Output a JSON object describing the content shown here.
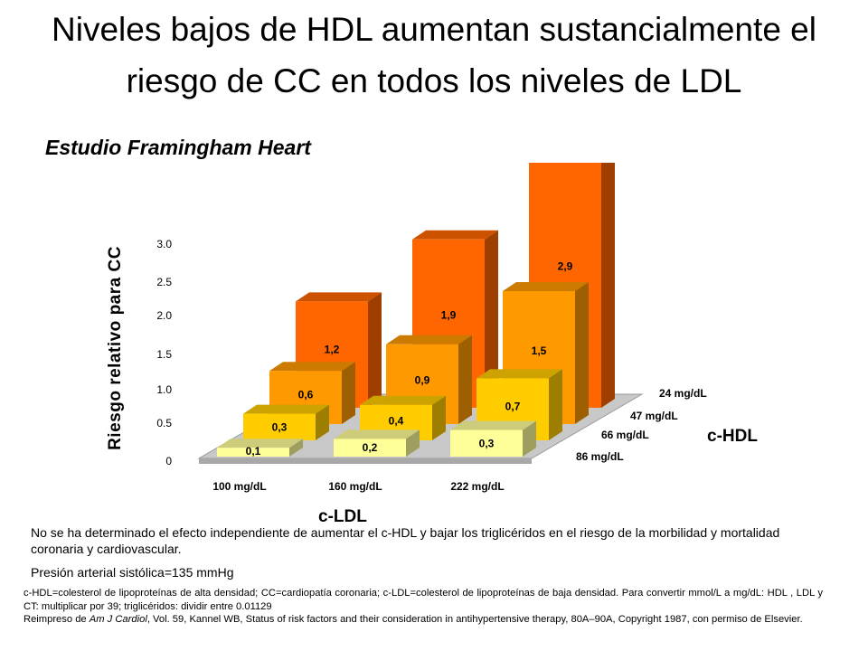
{
  "title_line1": "Niveles bajos de HDL aumentan sustancialmente el",
  "title_line2": "riesgo de CC en todos los niveles de LDL",
  "subtitle": "Estudio Framingham Heart",
  "note": "No se ha determinado el efecto independiente de aumentar el c-HDL y bajar los triglicéridos en el riesgo de la morbilidad y mortalidad coronaria y cardiovascular.",
  "blood_pressure": "Presión arterial sistólica=135 mmHg",
  "footnote": {
    "definitions": "c-HDL=colesterol de lipoproteínas de alta densidad; CC=cardiopatía coronaria; c-LDL=colesterol de lipoproteínas de baja densidad. Para convertir mmol/L a mg/dL: HDL , LDL y CT: multiplicar por 39; triglicéridos: dividir entre 0.01129",
    "reprint_prefix": "Reimpreso de ",
    "journal": "Am J Cardiol",
    "reprint_suffix": ", Vol. 59, Kannel WB, Status of risk factors and their consideration in antihypertensive therapy, 80A–90A, Copyright 1987, con permiso de Elsevier."
  },
  "chart_data": {
    "type": "bar",
    "ylabel": "Riesgo relativo para CC",
    "xlabel": "c-LDL",
    "depth_label": "c-HDL",
    "y_ticks": [
      "0",
      "0.5",
      "1.0",
      "1.5",
      "2.0",
      "2.5",
      "3.0"
    ],
    "ylim": [
      0,
      3.0
    ],
    "categories": [
      "100 mg/dL",
      "160 mg/dL",
      "222 mg/dL"
    ],
    "series": [
      {
        "name": "86 mg/dL",
        "values": [
          0.1,
          0.2,
          0.3
        ],
        "labels": [
          "0,1",
          "0,2",
          "0,3"
        ],
        "color": "#FFFF99"
      },
      {
        "name": "66 mg/dL",
        "values": [
          0.3,
          0.4,
          0.7
        ],
        "labels": [
          "0,3",
          "0,4",
          "0,7"
        ],
        "color": "#FFCC00"
      },
      {
        "name": "47 mg/dL",
        "values": [
          0.6,
          0.9,
          1.5
        ],
        "labels": [
          "0,6",
          "0,9",
          "1,5"
        ],
        "color": "#FF9900"
      },
      {
        "name": "24 mg/dL",
        "values": [
          1.2,
          1.9,
          2.9
        ],
        "labels": [
          "1,2",
          "1,9",
          "2,9"
        ],
        "color": "#FF6600"
      }
    ]
  }
}
